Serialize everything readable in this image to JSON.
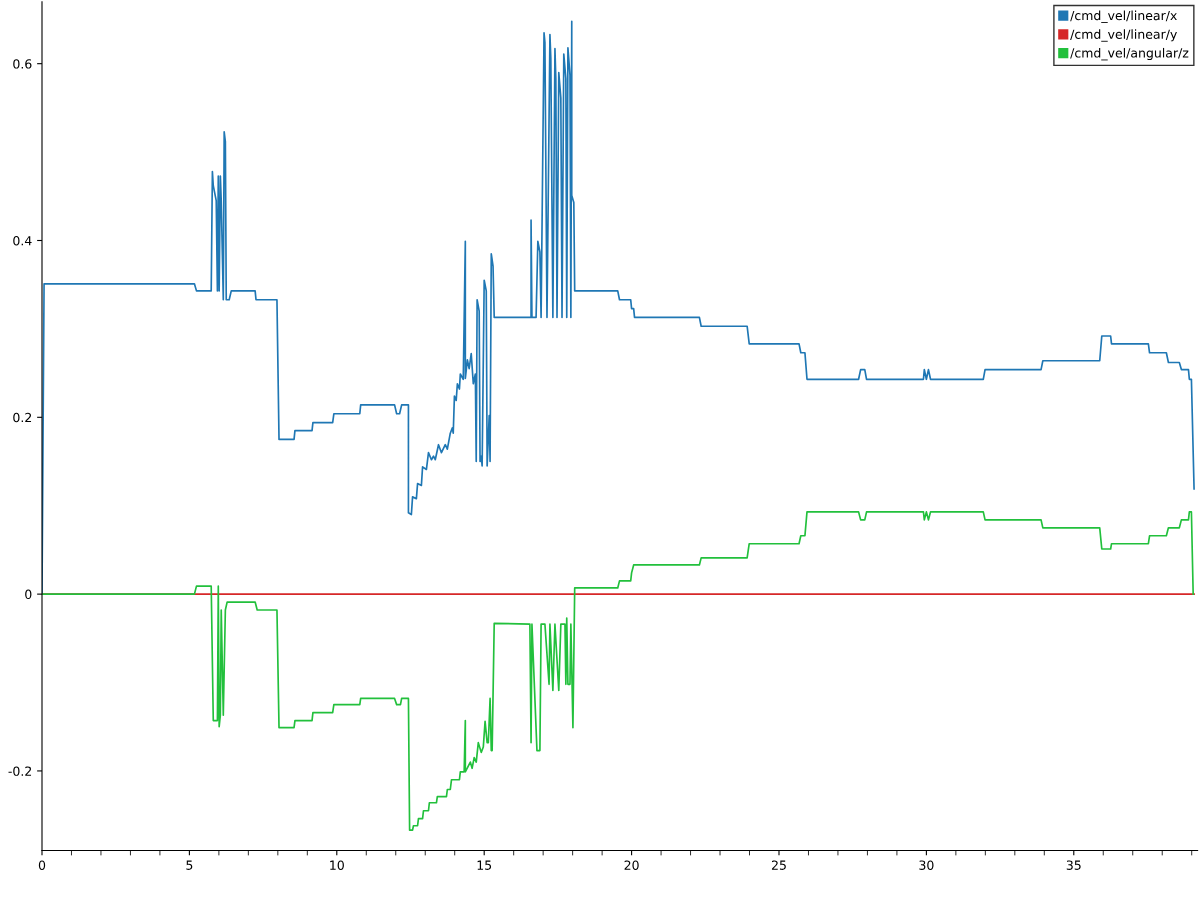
{
  "chart_data": {
    "type": "line",
    "xlim": [
      0,
      39.2
    ],
    "ylim": [
      -0.29,
      0.67
    ],
    "xticks": [
      0,
      {
        "value": 1,
        "label": null
      },
      {
        "value": 2,
        "label": null
      },
      {
        "value": 3,
        "label": null
      },
      {
        "value": 4,
        "label": null
      },
      5,
      {
        "value": 6,
        "label": null
      },
      {
        "value": 7,
        "label": null
      },
      {
        "value": 8,
        "label": null
      },
      {
        "value": 9,
        "label": null
      },
      10,
      {
        "value": 11,
        "label": null
      },
      {
        "value": 12,
        "label": null
      },
      {
        "value": 13,
        "label": null
      },
      {
        "value": 14,
        "label": null
      },
      15,
      {
        "value": 16,
        "label": null
      },
      {
        "value": 17,
        "label": null
      },
      {
        "value": 18,
        "label": null
      },
      {
        "value": 19,
        "label": null
      },
      20,
      {
        "value": 21,
        "label": null
      },
      {
        "value": 22,
        "label": null
      },
      {
        "value": 23,
        "label": null
      },
      {
        "value": 24,
        "label": null
      },
      25,
      {
        "value": 26,
        "label": null
      },
      {
        "value": 27,
        "label": null
      },
      {
        "value": 28,
        "label": null
      },
      {
        "value": 29,
        "label": null
      },
      30,
      {
        "value": 31,
        "label": null
      },
      {
        "value": 32,
        "label": null
      },
      {
        "value": 33,
        "label": null
      },
      {
        "value": 34,
        "label": null
      },
      35,
      {
        "value": 36,
        "label": null
      },
      {
        "value": 37,
        "label": null
      },
      {
        "value": 38,
        "label": null
      },
      {
        "value": 39,
        "label": null
      }
    ],
    "yticks": [
      {
        "value": -0.2,
        "label": "-0.2"
      },
      0,
      0.2,
      0.4,
      0.6
    ],
    "grid": false,
    "legend": "top right",
    "marker": "none",
    "line_style": "solid",
    "series": [
      {
        "name": "/cmd_vel/linear/x",
        "color": "#1f77b4",
        "x": [
          0,
          0.07,
          5.17,
          5.24,
          5.74,
          5.78,
          5.81,
          5.91,
          5.95,
          5.98,
          6.01,
          6.05,
          6.08,
          6.15,
          6.18,
          6.22,
          6.25,
          6.35,
          6.42,
          7.23,
          7.26,
          7.97,
          8.04,
          8.55,
          8.58,
          9.16,
          9.19,
          9.86,
          9.9,
          10.78,
          10.81,
          11.96,
          12.03,
          12.13,
          12.2,
          12.43,
          12.43,
          12.53,
          12.57,
          12.7,
          12.74,
          12.87,
          12.91,
          13.04,
          13.11,
          13.21,
          13.28,
          13.34,
          13.45,
          13.55,
          13.68,
          13.75,
          13.85,
          13.92,
          13.95,
          13.99,
          14.05,
          14.09,
          14.16,
          14.19,
          14.29,
          14.36,
          14.36,
          14.43,
          14.49,
          14.56,
          14.63,
          14.7,
          14.73,
          14.76,
          14.83,
          14.86,
          14.9,
          14.93,
          15.0,
          15.07,
          15.1,
          15.17,
          15.2,
          15.24,
          15.3,
          15.34,
          16.59,
          16.59,
          16.62,
          16.76,
          16.82,
          16.89,
          16.93,
          17.03,
          17.06,
          17.13,
          17.23,
          17.26,
          17.33,
          17.4,
          17.43,
          17.47,
          17.53,
          17.6,
          17.64,
          17.7,
          17.77,
          17.8,
          17.84,
          17.91,
          17.94,
          17.97,
          17.97,
          18.04,
          18.07,
          19.53,
          19.59,
          19.97,
          20.0,
          20.07,
          20.1,
          22.3,
          22.36,
          23.92,
          23.99,
          25.68,
          25.74,
          25.88,
          25.95,
          27.7,
          27.77,
          27.91,
          27.97,
          29.9,
          29.93,
          30.0,
          30.07,
          30.14,
          31.93,
          31.99,
          33.89,
          33.95,
          35.88,
          35.95,
          36.25,
          36.28,
          37.53,
          37.57,
          38.14,
          38.21,
          38.58,
          38.65,
          38.89,
          38.92,
          38.99,
          39.08
        ],
        "values": [
          0,
          0.351,
          0.351,
          0.343,
          0.343,
          0.478,
          0.462,
          0.445,
          0.343,
          0.473,
          0.343,
          0.473,
          0.445,
          0.333,
          0.523,
          0.512,
          0.333,
          0.333,
          0.343,
          0.343,
          0.333,
          0.333,
          0.175,
          0.175,
          0.185,
          0.185,
          0.194,
          0.194,
          0.204,
          0.204,
          0.214,
          0.214,
          0.204,
          0.204,
          0.214,
          0.214,
          0.092,
          0.09,
          0.11,
          0.108,
          0.125,
          0.123,
          0.144,
          0.141,
          0.16,
          0.152,
          0.156,
          0.152,
          0.169,
          0.16,
          0.169,
          0.164,
          0.182,
          0.188,
          0.182,
          0.224,
          0.219,
          0.238,
          0.232,
          0.249,
          0.243,
          0.399,
          0.244,
          0.265,
          0.255,
          0.272,
          0.238,
          0.249,
          0.15,
          0.333,
          0.32,
          0.15,
          0.156,
          0.145,
          0.355,
          0.343,
          0.145,
          0.202,
          0.15,
          0.385,
          0.371,
          0.313,
          0.313,
          0.423,
          0.313,
          0.313,
          0.399,
          0.387,
          0.313,
          0.635,
          0.624,
          0.313,
          0.633,
          0.606,
          0.313,
          0.617,
          0.583,
          0.313,
          0.59,
          0.561,
          0.313,
          0.611,
          0.583,
          0.313,
          0.618,
          0.587,
          0.313,
          0.648,
          0.451,
          0.443,
          0.343,
          0.343,
          0.333,
          0.333,
          0.323,
          0.323,
          0.313,
          0.313,
          0.303,
          0.303,
          0.283,
          0.283,
          0.273,
          0.273,
          0.243,
          0.243,
          0.254,
          0.254,
          0.243,
          0.243,
          0.254,
          0.243,
          0.254,
          0.243,
          0.243,
          0.254,
          0.254,
          0.264,
          0.264,
          0.292,
          0.292,
          0.283,
          0.283,
          0.273,
          0.273,
          0.262,
          0.262,
          0.254,
          0.254,
          0.243,
          0.243,
          0.119
        ]
      },
      {
        "name": "/cmd_vel/linear/y",
        "color": "#d62728",
        "x": [
          0,
          39.08
        ],
        "values": [
          0,
          0
        ]
      },
      {
        "name": "/cmd_vel/angular/z",
        "color": "#22c03c",
        "x": [
          0,
          5.17,
          5.24,
          5.74,
          5.81,
          5.95,
          5.98,
          6.01,
          6.05,
          6.08,
          6.15,
          6.22,
          6.28,
          6.35,
          7.23,
          7.3,
          7.97,
          8.04,
          8.55,
          8.58,
          9.16,
          9.19,
          9.86,
          9.9,
          10.78,
          10.81,
          11.96,
          12.03,
          12.16,
          12.2,
          12.43,
          12.47,
          12.57,
          12.6,
          12.74,
          12.77,
          12.91,
          12.94,
          13.11,
          13.14,
          13.38,
          13.41,
          13.72,
          13.75,
          13.85,
          13.89,
          13.99,
          14.05,
          14.16,
          14.19,
          14.32,
          14.36,
          14.36,
          14.53,
          14.59,
          14.66,
          14.73,
          14.8,
          14.9,
          14.97,
          15.03,
          15.1,
          15.14,
          15.2,
          15.24,
          15.27,
          15.34,
          16.55,
          16.59,
          16.62,
          16.79,
          16.89,
          16.93,
          17.06,
          17.2,
          17.23,
          17.33,
          17.4,
          17.53,
          17.6,
          17.74,
          17.77,
          17.8,
          17.84,
          17.91,
          17.94,
          18.01,
          18.07,
          19.53,
          19.59,
          19.97,
          20.0,
          20.07,
          22.3,
          22.36,
          23.92,
          23.99,
          25.68,
          25.74,
          25.88,
          25.95,
          27.7,
          27.77,
          27.91,
          27.97,
          29.9,
          29.93,
          30.0,
          30.07,
          30.14,
          31.93,
          31.99,
          33.89,
          33.95,
          35.88,
          35.95,
          36.25,
          36.28,
          37.53,
          37.57,
          38.14,
          38.21,
          38.58,
          38.65,
          38.89,
          38.92,
          38.99,
          39.05
        ],
        "values": [
          0,
          0,
          0.009,
          0.009,
          -0.143,
          -0.143,
          0.009,
          -0.15,
          -0.137,
          -0.018,
          -0.137,
          -0.018,
          -0.009,
          -0.009,
          -0.009,
          -0.018,
          -0.018,
          -0.151,
          -0.151,
          -0.143,
          -0.143,
          -0.134,
          -0.134,
          -0.125,
          -0.125,
          -0.118,
          -0.118,
          -0.125,
          -0.125,
          -0.118,
          -0.118,
          -0.267,
          -0.267,
          -0.262,
          -0.262,
          -0.254,
          -0.254,
          -0.245,
          -0.245,
          -0.236,
          -0.236,
          -0.229,
          -0.229,
          -0.221,
          -0.221,
          -0.21,
          -0.21,
          -0.21,
          -0.21,
          -0.201,
          -0.201,
          -0.143,
          -0.201,
          -0.19,
          -0.197,
          -0.185,
          -0.19,
          -0.168,
          -0.179,
          -0.173,
          -0.144,
          -0.168,
          -0.168,
          -0.118,
          -0.177,
          -0.177,
          -0.033,
          -0.034,
          -0.168,
          -0.034,
          -0.177,
          -0.177,
          -0.034,
          -0.034,
          -0.102,
          -0.034,
          -0.109,
          -0.034,
          -0.109,
          -0.034,
          -0.034,
          -0.102,
          -0.027,
          -0.102,
          -0.102,
          -0.034,
          -0.151,
          0.007,
          0.007,
          0.015,
          0.015,
          0.024,
          0.033,
          0.033,
          0.041,
          0.041,
          0.057,
          0.057,
          0.066,
          0.066,
          0.093,
          0.093,
          0.084,
          0.084,
          0.093,
          0.093,
          0.084,
          0.093,
          0.084,
          0.093,
          0.093,
          0.084,
          0.084,
          0.075,
          0.075,
          0.051,
          0.051,
          0.057,
          0.057,
          0.066,
          0.066,
          0.075,
          0.075,
          0.084,
          0.084,
          0.093,
          0.093,
          0
        ]
      }
    ]
  }
}
